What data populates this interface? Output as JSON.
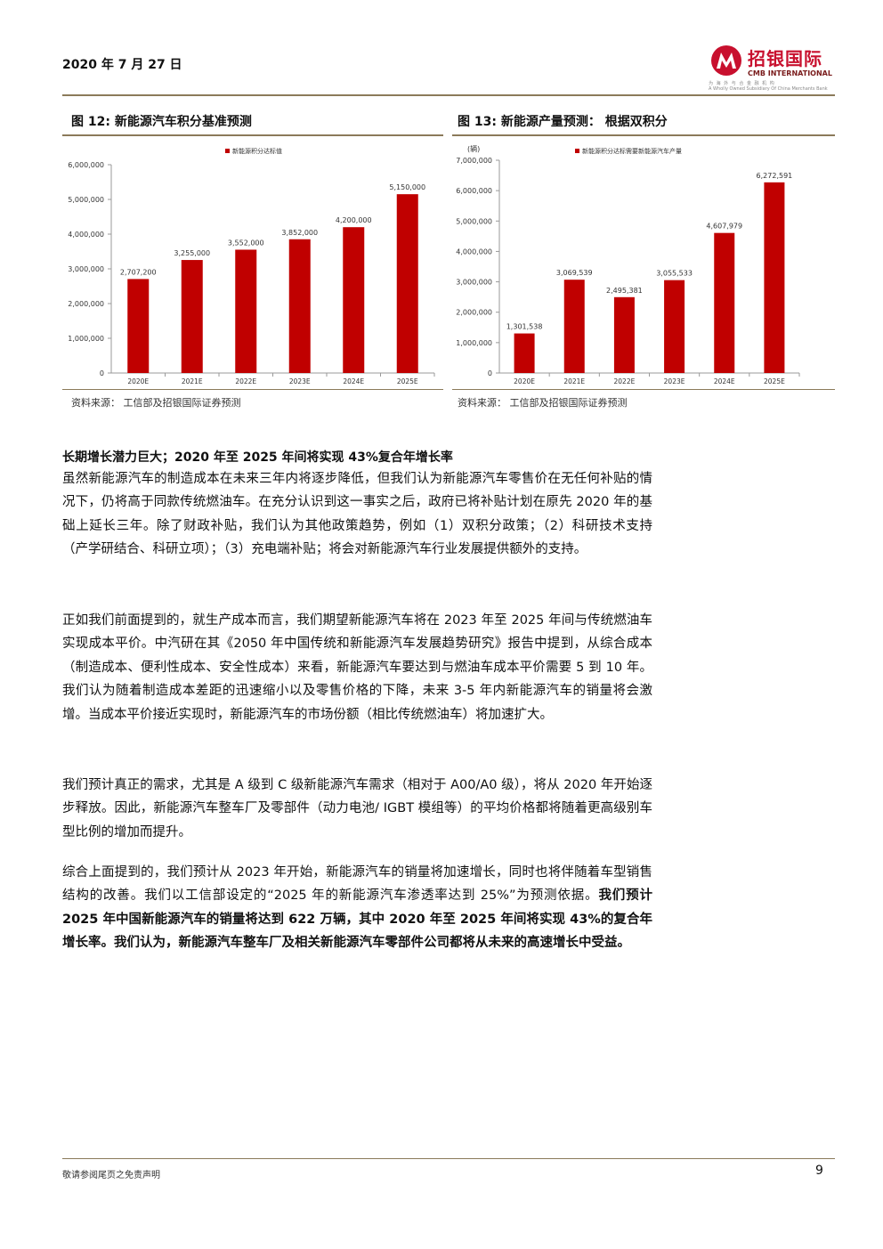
{
  "header": {
    "date": "2020 年 7 月 27 日",
    "logo_cn": "招银国际",
    "logo_en": "CMB INTERNATIONAL",
    "logo_tagline_cn": "为 海 外 与 合 金 融 机 构",
    "logo_tagline_en": "A Wholly Owned Subsidiary Of China Merchants Bank",
    "brand_color": "#c8102e"
  },
  "figure12": {
    "title": "图 12: 新能源汽车积分基准预测",
    "source": "资料来源： 工信部及招银国际证券预测"
  },
  "figure13": {
    "title": "图 13: 新能源产量预测： 根据双积分",
    "source": "资料来源： 工信部及招银国际证券预测"
  },
  "chart_data": [
    {
      "type": "bar",
      "title": "",
      "legend": [
        "新能源积分达标值"
      ],
      "legend_position": "top",
      "categories": [
        "2020E",
        "2021E",
        "2022E",
        "2023E",
        "2024E",
        "2025E"
      ],
      "values": [
        2707200,
        3255000,
        3552000,
        3852000,
        4200000,
        5150000
      ],
      "value_labels": [
        "2,707,200",
        "3,255,000",
        "3,552,000",
        "3,852,000",
        "4,200,000",
        "5,150,000"
      ],
      "ylim": [
        0,
        6000000
      ],
      "yticks": [
        0,
        1000000,
        2000000,
        3000000,
        4000000,
        5000000,
        6000000
      ],
      "ytick_labels": [
        "0",
        "1,000,000",
        "2,000,000",
        "3,000,000",
        "4,000,000",
        "5,000,000",
        "6,000,000"
      ],
      "ylabel": "",
      "color": "#c00000",
      "grid": false
    },
    {
      "type": "bar",
      "title": "",
      "legend": [
        "新能源积分达标需要新能源汽车产量"
      ],
      "legend_position": "top",
      "categories": [
        "2020E",
        "2021E",
        "2022E",
        "2023E",
        "2024E",
        "2025E"
      ],
      "values": [
        1301538,
        3069539,
        2495381,
        3055533,
        4607979,
        6272591
      ],
      "value_labels": [
        "1,301,538",
        "3,069,539",
        "2,495,381",
        "3,055,533",
        "4,607,979",
        "6,272,591"
      ],
      "ylim": [
        0,
        7000000
      ],
      "yticks": [
        0,
        1000000,
        2000000,
        3000000,
        4000000,
        5000000,
        6000000,
        7000000
      ],
      "ytick_labels": [
        "0",
        "1,000,000",
        "2,000,000",
        "3,000,000",
        "4,000,000",
        "5,000,000",
        "6,000,000",
        "7,000,000"
      ],
      "ylabel": "(辆)",
      "color": "#c00000",
      "grid": false
    }
  ],
  "body": {
    "heading": "长期增长潜力巨大；2020 年至 2025 年间将实现 43%复合年增长率",
    "p1": "虽然新能源汽车的制造成本在未来三年内将逐步降低，但我们认为新能源汽车零售价在无任何补贴的情况下，仍将高于同款传统燃油车。在充分认识到这一事实之后，政府已将补贴计划在原先 2020 年的基础上延长三年。除了财政补贴，我们认为其他政策趋势，例如（1）双积分政策；（2）科研技术支持（产学研结合、科研立项）；（3）充电端补贴；将会对新能源汽车行业发展提供额外的支持。",
    "p2": "正如我们前面提到的，就生产成本而言，我们期望新能源汽车将在 2023 年至 2025 年间与传统燃油车实现成本平价。中汽研在其《2050 年中国传统和新能源汽车发展趋势研究》报告中提到，从综合成本（制造成本、便利性成本、安全性成本）来看，新能源汽车要达到与燃油车成本平价需要 5 到 10 年。我们认为随着制造成本差距的迅速缩小以及零售价格的下降，未来 3-5 年内新能源汽车的销量将会激增。当成本平价接近实现时，新能源汽车的市场份额（相比传统燃油车）将加速扩大。",
    "p3": "我们预计真正的需求，尤其是 A 级到 C 级新能源汽车需求（相对于 A00/A0 级），将从 2020 年开始逐步释放。因此，新能源汽车整车厂及零部件（动力电池/ IGBT 模组等）的平均价格都将随着更高级别车型比例的增加而提升。",
    "p4_normal": "综合上面提到的，我们预计从 2023 年开始，新能源汽车的销量将加速增长，同时也将伴随着车型销售结构的改善。我们以工信部设定的“2025 年的新能源汽车渗透率达到 25%”为预测依据。",
    "p4_bold": "我们预计 2025 年中国新能源汽车的销量将达到 622 万辆，其中 2020 年至 2025 年间将实现 43%的复合年增长率。我们认为，新能源汽车整车厂及相关新能源汽车零部件公司都将从未来的高速增长中受益。"
  },
  "footer": {
    "disclaimer": "敬请参阅尾页之免责声明",
    "page": "9"
  }
}
